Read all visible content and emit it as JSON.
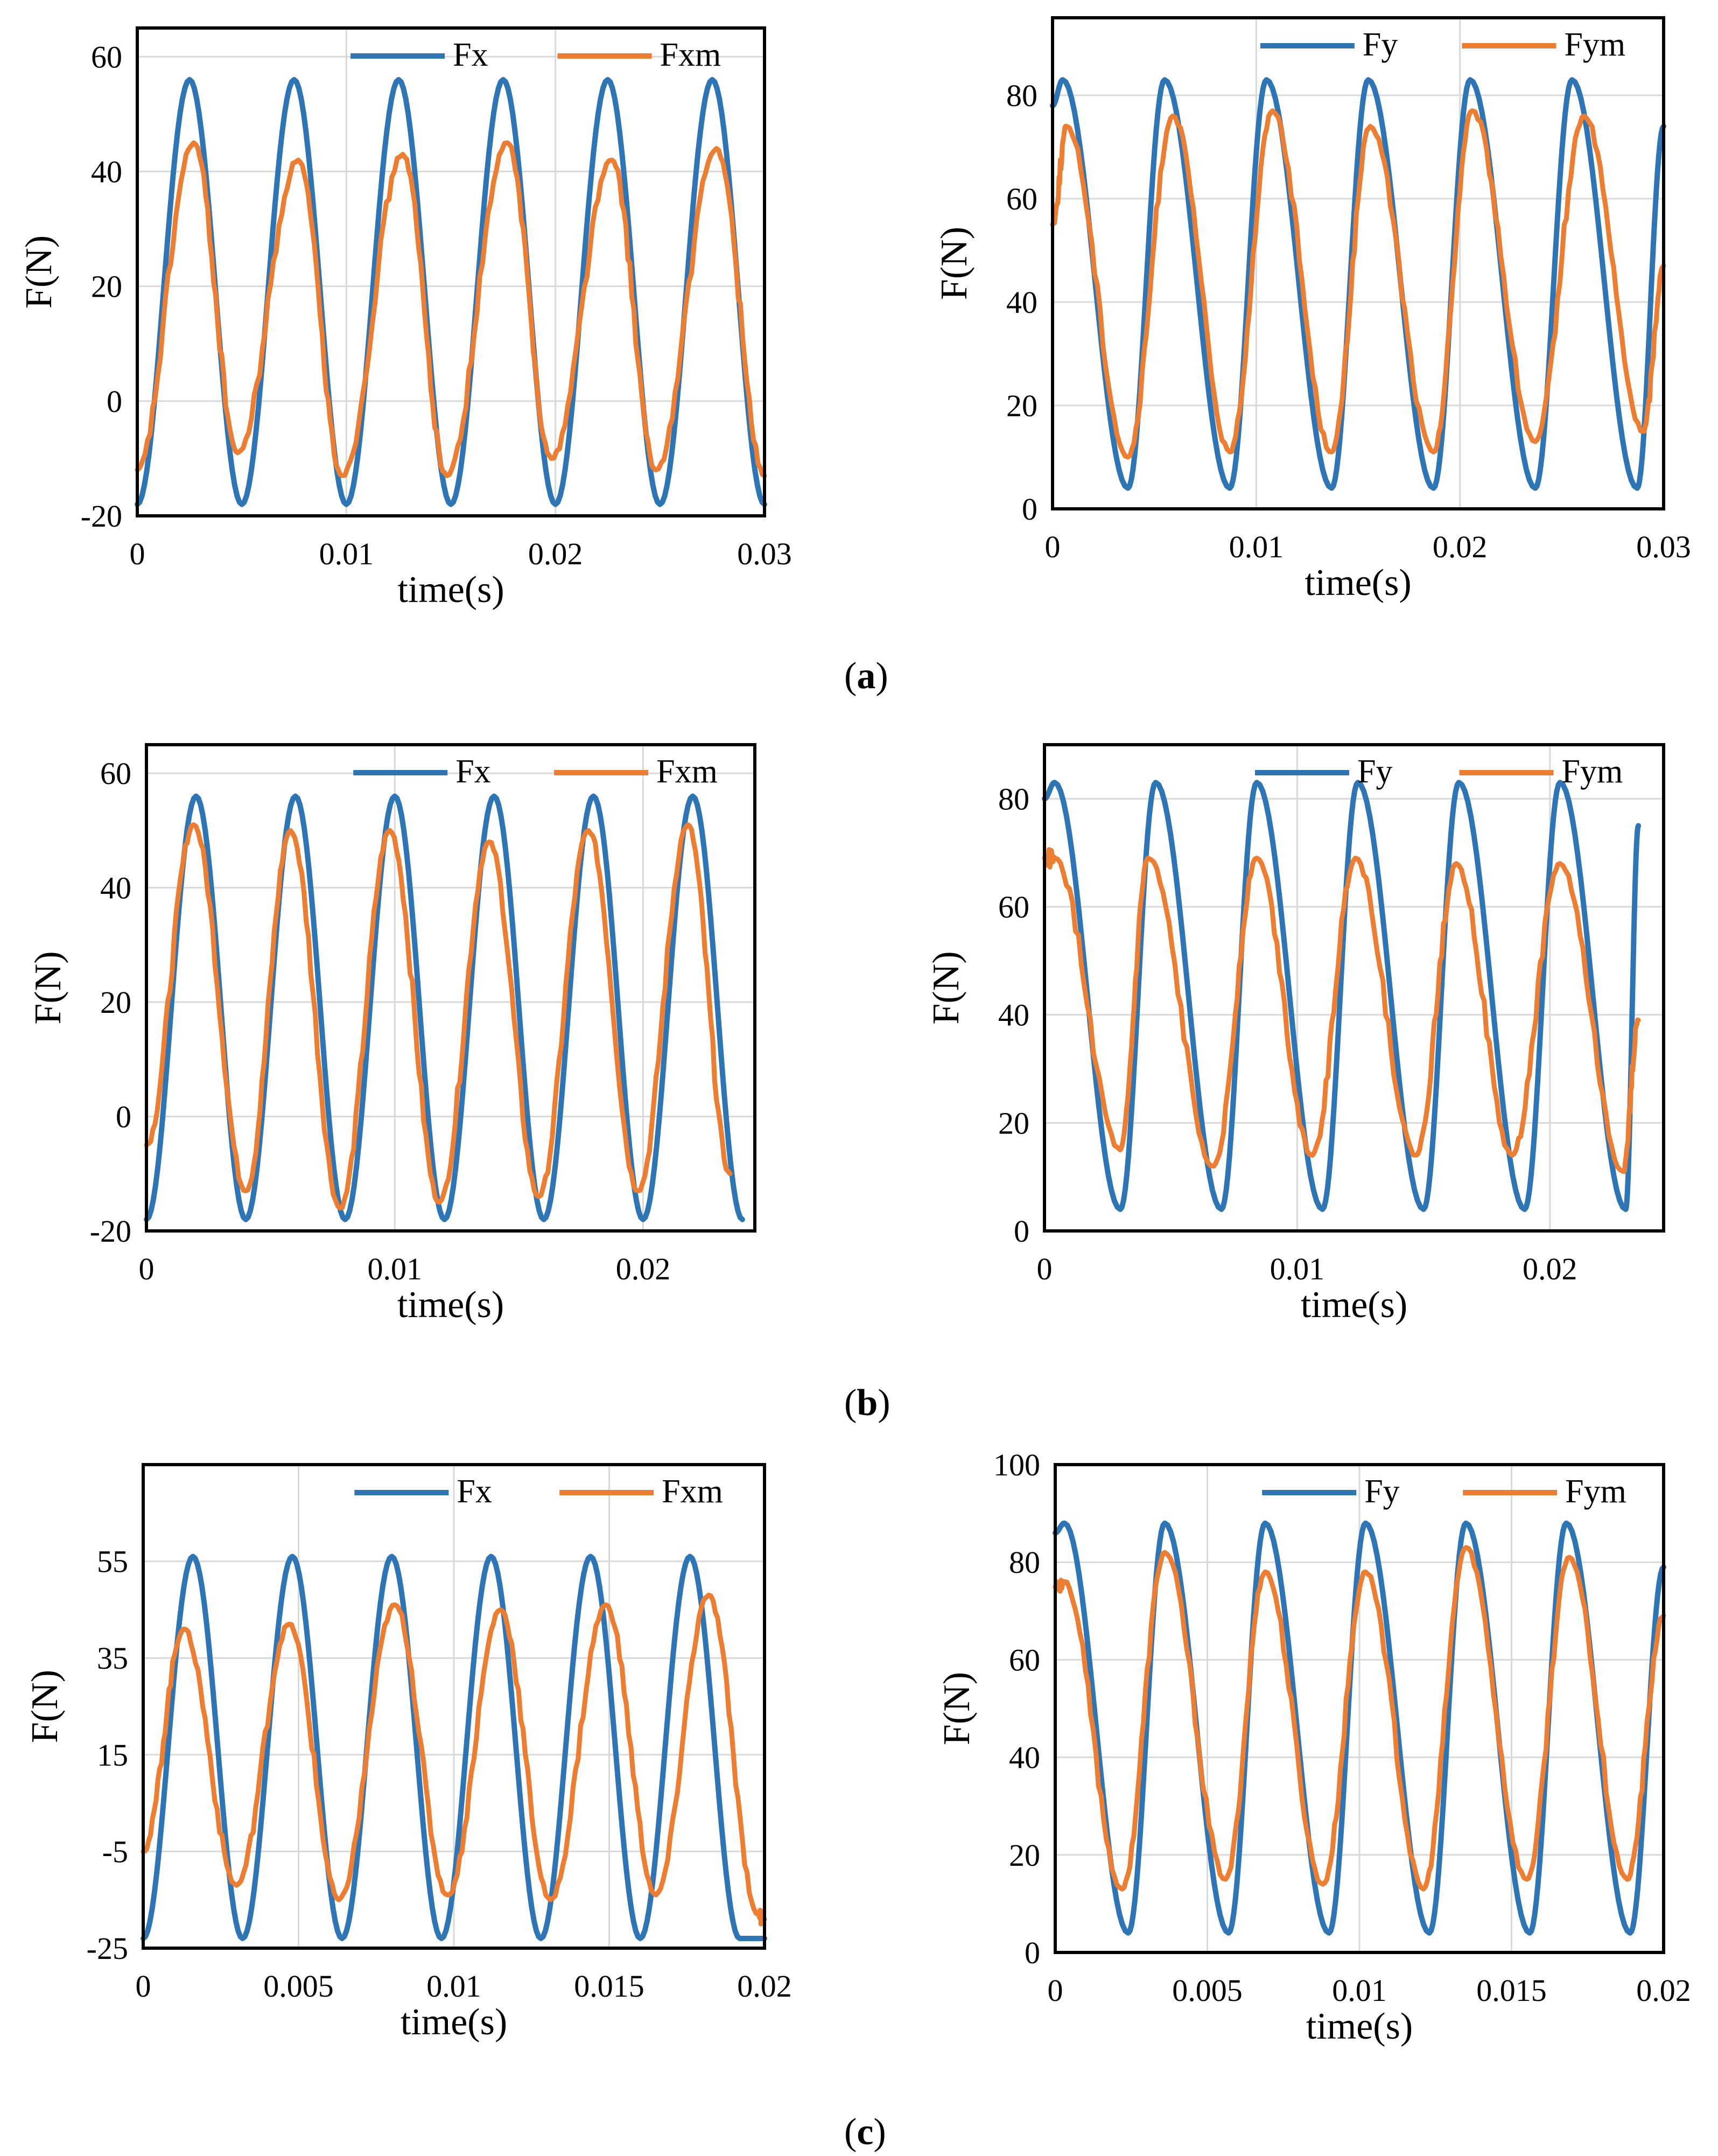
{
  "figure": {
    "captions": [
      "(a)",
      "(b)",
      "(c)"
    ],
    "caption_letters": [
      "a",
      "b",
      "c"
    ]
  },
  "colors": {
    "model": "#2E75B6",
    "measured": "#ED7D31",
    "grid": "#D9D9D9",
    "frame": "#000000"
  },
  "chart_data": [
    {
      "id": "a-fx",
      "type": "line",
      "group": "a",
      "xlabel": "time(s)",
      "ylabel": "F(N)",
      "xlim": [
        0,
        0.03
      ],
      "ylim": [
        -20,
        65
      ],
      "xticks": [
        0,
        0.01,
        0.02,
        0.03
      ],
      "xtick_labels": [
        "0",
        "0.01",
        "0.02",
        "0.03"
      ],
      "yticks": [
        -20,
        0,
        20,
        40,
        60
      ],
      "ytick_labels": [
        "-20",
        "0",
        "20",
        "40",
        "60"
      ],
      "grid": true,
      "legend_position": "top-right",
      "series": [
        {
          "name": "Fx",
          "color": "#2E75B6",
          "x": [
            0,
            0.0025,
            0.005,
            0.0075,
            0.01,
            0.0125,
            0.015,
            0.0175,
            0.02,
            0.0225,
            0.025,
            0.0275,
            0.03
          ],
          "y": [
            -18,
            56,
            -18,
            56,
            -18,
            56,
            -18,
            56,
            -18,
            56,
            -18,
            56,
            -18
          ]
        },
        {
          "name": "Fxm",
          "color": "#ED7D31",
          "x": [
            0,
            0.0027,
            0.0048,
            0.0077,
            0.0098,
            0.0127,
            0.0148,
            0.0177,
            0.0198,
            0.0227,
            0.0248,
            0.0277,
            0.03
          ],
          "y": [
            -12,
            45,
            -9,
            42,
            -13,
            43,
            -13,
            45,
            -10,
            42,
            -12,
            44,
            -13
          ]
        }
      ]
    },
    {
      "id": "a-fy",
      "type": "line",
      "group": "a",
      "xlabel": "time(s)",
      "ylabel": "F(N)",
      "xlim": [
        0,
        0.03
      ],
      "ylim": [
        0,
        95
      ],
      "xticks": [
        0,
        0.01,
        0.02,
        0.03
      ],
      "xtick_labels": [
        "0",
        "0.01",
        "0.02",
        "0.03"
      ],
      "yticks": [
        0,
        20,
        40,
        60,
        80
      ],
      "ytick_labels": [
        "0",
        "20",
        "40",
        "60",
        "80"
      ],
      "grid": true,
      "legend_position": "top-right",
      "series": [
        {
          "name": "Fy",
          "color": "#2E75B6",
          "x": [
            0,
            0.0005,
            0.0037,
            0.0055,
            0.0087,
            0.0105,
            0.0137,
            0.0155,
            0.0187,
            0.0205,
            0.0237,
            0.0255,
            0.0287,
            0.03
          ],
          "y": [
            78,
            83,
            4,
            83,
            4,
            83,
            4,
            83,
            4,
            83,
            4,
            83,
            4,
            74
          ]
        },
        {
          "name": "Fym",
          "color": "#ED7D31",
          "x": [
            0,
            0.0007,
            0.0037,
            0.0059,
            0.0087,
            0.0108,
            0.0137,
            0.0156,
            0.0187,
            0.0206,
            0.0237,
            0.0261,
            0.029,
            0.03
          ],
          "y": [
            55,
            74,
            10,
            76,
            11,
            77,
            11,
            74,
            11,
            77,
            13,
            76,
            15,
            47
          ]
        }
      ]
    },
    {
      "id": "b-fx",
      "type": "line",
      "group": "b",
      "xlabel": "time(s)",
      "ylabel": "F(N)",
      "xlim": [
        0,
        0.0245
      ],
      "ylim": [
        -20,
        65
      ],
      "xticks": [
        0,
        0.01,
        0.02
      ],
      "xtick_labels": [
        "0",
        "0.01",
        "0.02"
      ],
      "yticks": [
        -20,
        0,
        20,
        40,
        60
      ],
      "ytick_labels": [
        "-20",
        "0",
        "20",
        "40",
        "60"
      ],
      "grid": true,
      "legend_position": "top-right",
      "series": [
        {
          "name": "Fx",
          "color": "#2E75B6",
          "x": [
            0,
            0.002,
            0.004,
            0.006,
            0.008,
            0.01,
            0.012,
            0.014,
            0.016,
            0.018,
            0.02,
            0.022,
            0.024
          ],
          "y": [
            -18,
            56,
            -18,
            56,
            -18,
            56,
            -18,
            56,
            -18,
            56,
            -18,
            56,
            -18
          ]
        },
        {
          "name": "Fxm",
          "color": "#ED7D31",
          "x": [
            0,
            0.0019,
            0.004,
            0.0058,
            0.0078,
            0.0098,
            0.0118,
            0.0138,
            0.0158,
            0.0178,
            0.0198,
            0.0218,
            0.0235
          ],
          "y": [
            -5,
            51,
            -13,
            50,
            -16,
            50,
            -15,
            48,
            -14,
            50,
            -13,
            51,
            -10
          ]
        }
      ]
    },
    {
      "id": "b-fy",
      "type": "line",
      "group": "b",
      "xlabel": "time(s)",
      "ylabel": "F(N)",
      "xlim": [
        0,
        0.0245
      ],
      "ylim": [
        0,
        90
      ],
      "xticks": [
        0,
        0.01,
        0.02
      ],
      "xtick_labels": [
        "0",
        "0.01",
        "0.02"
      ],
      "yticks": [
        0,
        20,
        40,
        60,
        80
      ],
      "ytick_labels": [
        "0",
        "20",
        "40",
        "60",
        "80"
      ],
      "grid": true,
      "legend_position": "top-right",
      "series": [
        {
          "name": "Fy",
          "color": "#2E75B6",
          "x": [
            0,
            0.0004,
            0.003,
            0.0044,
            0.007,
            0.0084,
            0.011,
            0.0124,
            0.015,
            0.0164,
            0.019,
            0.0204,
            0.023,
            0.0235
          ],
          "y": [
            80,
            83,
            4,
            83,
            4,
            83,
            4,
            83,
            4,
            83,
            4,
            83,
            4,
            75
          ]
        },
        {
          "name": "Fym",
          "color": "#ED7D31",
          "x": [
            0,
            0.0004,
            0.003,
            0.0041,
            0.0067,
            0.0084,
            0.0106,
            0.0123,
            0.0147,
            0.0163,
            0.0185,
            0.0204,
            0.0229,
            0.0235
          ],
          "y": [
            69,
            69,
            15,
            69,
            12,
            69,
            14,
            69,
            14,
            68,
            14,
            68,
            11,
            39
          ]
        }
      ]
    },
    {
      "id": "c-fx",
      "type": "line",
      "group": "c",
      "xlabel": "time(s)",
      "ylabel": "F(N)",
      "xlim": [
        0,
        0.02
      ],
      "ylim": [
        -25,
        75
      ],
      "xticks": [
        0,
        0.005,
        0.01,
        0.015,
        0.02
      ],
      "xtick_labels": [
        "0",
        "0.005",
        "0.01",
        "0.015",
        "0.02"
      ],
      "yticks": [
        -25,
        -5,
        15,
        35,
        55
      ],
      "ytick_labels": [
        "-25",
        "-5",
        "15",
        "35",
        "55"
      ],
      "grid": true,
      "legend_position": "top-right",
      "series": [
        {
          "name": "Fx",
          "color": "#2E75B6",
          "x": [
            0,
            0.0016,
            0.0032,
            0.0048,
            0.0064,
            0.008,
            0.0096,
            0.0112,
            0.0128,
            0.0144,
            0.016,
            0.0176,
            0.0192,
            0.02
          ],
          "y": [
            -23,
            56,
            -23,
            56,
            -23,
            56,
            -23,
            56,
            -23,
            56,
            -23,
            56,
            -23,
            -23
          ]
        },
        {
          "name": "Fxm",
          "color": "#ED7D31",
          "x": [
            0,
            0.0013,
            0.003,
            0.0047,
            0.0063,
            0.0081,
            0.0098,
            0.0115,
            0.0131,
            0.0149,
            0.0165,
            0.0182,
            0.0198,
            0.02
          ],
          "y": [
            -5,
            41,
            -12,
            42,
            -15,
            46,
            -14,
            45,
            -15,
            46,
            -14,
            48,
            -18,
            -19
          ]
        }
      ]
    },
    {
      "id": "c-fy",
      "type": "line",
      "group": "c",
      "xlabel": "time(s)",
      "ylabel": "F(N)",
      "xlim": [
        0,
        0.02
      ],
      "ylim": [
        0,
        100
      ],
      "xticks": [
        0,
        0.005,
        0.01,
        0.015,
        0.02
      ],
      "xtick_labels": [
        "0",
        "0.005",
        "0.01",
        "0.015",
        "0.02"
      ],
      "yticks": [
        0,
        20,
        40,
        60,
        80,
        100
      ],
      "ytick_labels": [
        "0",
        "20",
        "40",
        "60",
        "80",
        "100"
      ],
      "grid": true,
      "legend_position": "top-right",
      "series": [
        {
          "name": "Fy",
          "color": "#2E75B6",
          "x": [
            0,
            0.0003,
            0.0024,
            0.0036,
            0.0057,
            0.0069,
            0.009,
            0.0102,
            0.0123,
            0.0135,
            0.0156,
            0.0168,
            0.0189,
            0.02
          ],
          "y": [
            86,
            88,
            4,
            88,
            4,
            88,
            4,
            88,
            4,
            88,
            4,
            88,
            4,
            79
          ]
        },
        {
          "name": "Fym",
          "color": "#ED7D31",
          "x": [
            0,
            0.0003,
            0.0022,
            0.0036,
            0.0056,
            0.0069,
            0.0088,
            0.0102,
            0.0121,
            0.0135,
            0.0155,
            0.0169,
            0.0188,
            0.02
          ],
          "y": [
            75,
            76,
            13,
            82,
            15,
            78,
            14,
            78,
            13,
            83,
            15,
            81,
            15,
            69
          ]
        }
      ]
    }
  ]
}
